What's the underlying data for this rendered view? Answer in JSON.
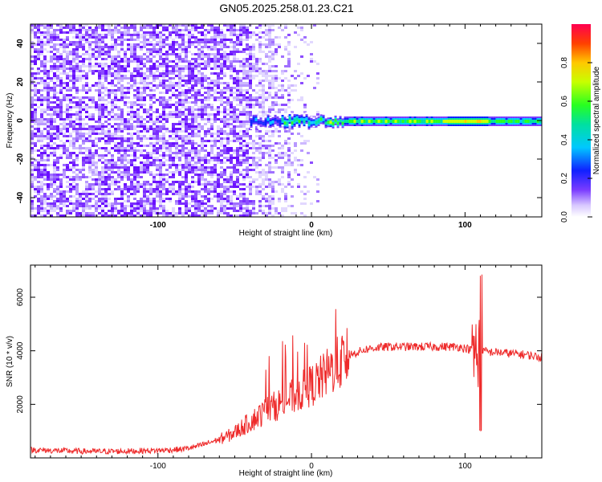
{
  "title": "GN05.2025.258.01.23.C21",
  "chart_data": [
    {
      "type": "heatmap",
      "xlabel": "Height of straight line (km)",
      "ylabel": "Frequency (Hz)",
      "xlim": [
        -183,
        150
      ],
      "ylim": [
        -50,
        50
      ],
      "x_ticks": [
        -100,
        0,
        100
      ],
      "y_ticks": [
        -40,
        -20,
        0,
        20,
        40
      ],
      "colorbar": {
        "label": "Normalized spectral amplitude",
        "range": [
          0,
          1
        ],
        "ticks": [
          0.0,
          0.2,
          0.4,
          0.6,
          0.8
        ]
      },
      "structure": {
        "noise_region_end_km": -5,
        "sparse_noise_end_km": 5,
        "signal_band_start_km": -40,
        "signal_band_center_hz": 0,
        "signal_band_halfwidth_hz": 4
      }
    },
    {
      "type": "line",
      "xlabel": "Height of straight line (km)",
      "ylabel": "SNR (10 * v/v)",
      "xlim": [
        -183,
        150
      ],
      "ylim": [
        0,
        7200
      ],
      "x_ticks": [
        -100,
        0,
        100
      ],
      "y_ticks": [
        2000,
        4000,
        6000
      ],
      "series_color": "#ee2a2a",
      "x": [
        -183,
        -160,
        -140,
        -120,
        -100,
        -85,
        -75,
        -65,
        -55,
        -50,
        -45,
        -40,
        -35,
        -30,
        -25,
        -20,
        -15,
        -10,
        -5,
        0,
        5,
        10,
        15,
        20,
        25,
        30,
        35,
        40,
        50,
        60,
        70,
        80,
        90,
        95,
        100,
        103,
        106,
        108,
        110,
        112,
        115,
        120,
        130,
        140,
        150
      ],
      "y": [
        300,
        260,
        240,
        250,
        280,
        320,
        420,
        600,
        800,
        950,
        1150,
        1350,
        1550,
        1750,
        1900,
        2050,
        2200,
        2350,
        2550,
        2700,
        2900,
        3150,
        3400,
        3650,
        3850,
        3950,
        4050,
        4100,
        4150,
        4150,
        4150,
        4150,
        4150,
        4150,
        4100,
        4050,
        3950,
        4000,
        3900,
        4000,
        3950,
        3950,
        3900,
        3850,
        3750
      ]
    }
  ]
}
